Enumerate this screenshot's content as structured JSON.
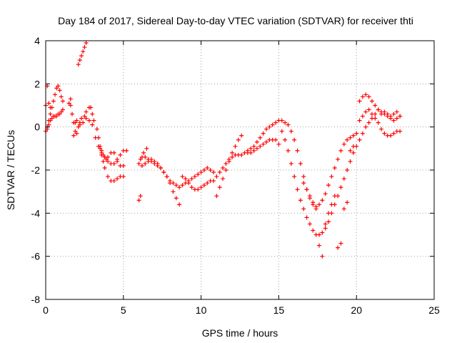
{
  "chart_data": {
    "type": "scatter",
    "title": "Day 184 of 2017, Sidereal Day-to-day VTEC variation (SDTVAR) for receiver thti",
    "xlabel": "GPS time / hours",
    "ylabel": "SDTVAR / TECUs",
    "xlim": [
      0,
      25
    ],
    "ylim": [
      -8,
      4
    ],
    "xticks": [
      0,
      5,
      10,
      15,
      20,
      25
    ],
    "yticks": [
      -8,
      -6,
      -4,
      -2,
      0,
      2,
      4
    ],
    "grid": true,
    "marker": "plus",
    "color": "#ff0000",
    "series": [
      {
        "points": [
          [
            0.0,
            -0.2
          ],
          [
            0.1,
            0.0
          ],
          [
            0.2,
            0.3
          ],
          [
            0.3,
            0.6
          ],
          [
            0.4,
            0.9
          ],
          [
            0.5,
            1.2
          ],
          [
            0.6,
            1.5
          ],
          [
            0.7,
            1.8
          ],
          [
            0.8,
            1.9
          ],
          [
            0.9,
            1.7
          ],
          [
            1.0,
            1.4
          ],
          [
            1.1,
            1.2
          ],
          [
            1.6,
            1.0
          ],
          [
            1.7,
            0.6
          ],
          [
            1.8,
            0.2
          ],
          [
            1.9,
            -0.2
          ],
          [
            2.0,
            -0.3
          ],
          [
            2.1,
            0.0
          ],
          [
            2.2,
            0.2
          ],
          [
            2.3,
            0.4
          ],
          [
            2.5,
            0.5
          ],
          [
            2.6,
            0.7
          ],
          [
            2.8,
            0.9
          ],
          [
            2.9,
            0.9
          ],
          [
            3.0,
            0.6
          ],
          [
            3.1,
            0.3
          ],
          [
            3.3,
            -0.1
          ],
          [
            3.4,
            -0.5
          ],
          [
            3.5,
            -0.9
          ],
          [
            3.6,
            -1.3
          ],
          [
            3.7,
            -1.6
          ],
          [
            3.8,
            -1.9
          ],
          [
            4.0,
            -2.3
          ],
          [
            4.2,
            -2.5
          ],
          [
            4.4,
            -2.5
          ],
          [
            4.6,
            -2.4
          ],
          [
            4.8,
            -2.3
          ],
          [
            5.0,
            -2.3
          ],
          [
            6.0,
            -1.7
          ],
          [
            6.1,
            -1.5
          ],
          [
            6.2,
            -1.4
          ],
          [
            6.4,
            -1.4
          ],
          [
            6.6,
            -1.5
          ],
          [
            6.8,
            -1.6
          ],
          [
            7.0,
            -1.7
          ],
          [
            7.2,
            -1.8
          ],
          [
            7.4,
            -1.9
          ],
          [
            7.6,
            -2.1
          ],
          [
            7.8,
            -2.3
          ],
          [
            8.0,
            -2.6
          ],
          [
            8.2,
            -3.0
          ],
          [
            8.4,
            -3.3
          ],
          [
            8.6,
            -3.6
          ],
          [
            8.8,
            -2.3
          ],
          [
            9.0,
            -2.4
          ],
          [
            9.2,
            -2.6
          ],
          [
            9.4,
            -2.8
          ],
          [
            9.6,
            -2.9
          ],
          [
            9.8,
            -2.9
          ],
          [
            10.0,
            -2.8
          ],
          [
            10.2,
            -2.7
          ],
          [
            10.4,
            -2.6
          ],
          [
            10.6,
            -2.5
          ],
          [
            10.8,
            -2.5
          ],
          [
            11.0,
            -2.3
          ],
          [
            11.2,
            -2.1
          ],
          [
            11.4,
            -1.9
          ],
          [
            11.6,
            -1.7
          ],
          [
            11.8,
            -1.5
          ],
          [
            12.0,
            -1.4
          ],
          [
            12.2,
            -1.3
          ],
          [
            12.4,
            -1.3
          ],
          [
            12.6,
            -1.3
          ],
          [
            12.8,
            -1.2
          ],
          [
            13.0,
            -1.2
          ],
          [
            13.2,
            -1.2
          ],
          [
            13.4,
            -1.1
          ],
          [
            13.6,
            -1.0
          ],
          [
            13.8,
            -0.9
          ],
          [
            14.0,
            -0.8
          ],
          [
            14.2,
            -0.7
          ],
          [
            14.4,
            -0.6
          ],
          [
            14.6,
            -0.6
          ],
          [
            14.8,
            -0.6
          ],
          [
            15.0,
            -0.8
          ],
          [
            15.2,
            -0.2
          ],
          [
            15.4,
            -0.6
          ],
          [
            15.6,
            -1.1
          ],
          [
            15.8,
            -1.7
          ],
          [
            16.0,
            -2.3
          ],
          [
            16.2,
            -2.9
          ],
          [
            16.4,
            -3.4
          ],
          [
            16.6,
            -3.8
          ],
          [
            16.8,
            -4.2
          ],
          [
            17.0,
            -4.5
          ],
          [
            17.2,
            -4.8
          ],
          [
            17.4,
            -5.0
          ],
          [
            17.6,
            -5.0
          ],
          [
            17.8,
            -4.9
          ],
          [
            18.0,
            -4.7
          ],
          [
            18.2,
            -4.4
          ],
          [
            18.4,
            -4.0
          ],
          [
            18.6,
            -3.6
          ],
          [
            18.8,
            -3.2
          ],
          [
            19.0,
            -2.8
          ],
          [
            19.2,
            -2.4
          ],
          [
            19.4,
            -2.0
          ],
          [
            19.6,
            -1.6
          ],
          [
            19.8,
            -1.2
          ],
          [
            20.0,
            -0.9
          ],
          [
            20.2,
            -0.6
          ],
          [
            20.4,
            -0.3
          ],
          [
            20.6,
            0.0
          ],
          [
            20.8,
            0.2
          ],
          [
            21.0,
            0.4
          ],
          [
            21.2,
            0.6
          ],
          [
            21.4,
            0.8
          ],
          [
            21.6,
            0.7
          ],
          [
            21.8,
            0.7
          ],
          [
            22.0,
            0.6
          ],
          [
            22.2,
            0.5
          ],
          [
            22.4,
            0.6
          ],
          [
            22.6,
            0.7
          ],
          [
            22.8,
            0.5
          ]
        ]
      },
      {
        "points": [
          [
            0.1,
            -0.1
          ],
          [
            0.2,
            0.1
          ],
          [
            0.3,
            0.3
          ],
          [
            0.4,
            0.4
          ],
          [
            0.5,
            0.5
          ],
          [
            0.6,
            0.5
          ],
          [
            0.7,
            0.5
          ],
          [
            0.8,
            0.6
          ],
          [
            0.9,
            0.6
          ],
          [
            1.0,
            0.7
          ],
          [
            1.1,
            0.8
          ],
          [
            2.0,
            0.3
          ],
          [
            2.2,
            0.1
          ],
          [
            2.4,
            0.2
          ],
          [
            2.6,
            0.4
          ],
          [
            2.8,
            0.3
          ],
          [
            3.0,
            0.1
          ],
          [
            3.2,
            -0.5
          ],
          [
            3.4,
            -0.9
          ],
          [
            3.6,
            -1.2
          ],
          [
            3.8,
            -1.4
          ],
          [
            4.0,
            -1.6
          ],
          [
            4.2,
            -1.7
          ],
          [
            4.4,
            -1.7
          ],
          [
            4.6,
            -1.6
          ],
          [
            4.8,
            -1.8
          ],
          [
            5.0,
            -1.8
          ],
          [
            6.2,
            -1.8
          ],
          [
            6.4,
            -1.7
          ],
          [
            6.6,
            -1.6
          ],
          [
            6.8,
            -1.5
          ],
          [
            7.0,
            -1.6
          ],
          [
            7.2,
            -1.7
          ],
          [
            7.4,
            -1.9
          ],
          [
            7.6,
            -2.1
          ],
          [
            7.8,
            -2.3
          ],
          [
            8.0,
            -2.5
          ],
          [
            8.2,
            -2.6
          ],
          [
            8.4,
            -2.7
          ],
          [
            8.6,
            -2.8
          ],
          [
            8.8,
            -2.7
          ],
          [
            9.0,
            -2.6
          ],
          [
            9.2,
            -2.5
          ],
          [
            9.4,
            -2.4
          ],
          [
            9.6,
            -2.3
          ],
          [
            9.8,
            -2.2
          ],
          [
            10.0,
            -2.1
          ],
          [
            10.2,
            -2.0
          ],
          [
            10.4,
            -1.9
          ],
          [
            10.6,
            -2.0
          ],
          [
            10.8,
            -2.1
          ],
          [
            11.0,
            -3.2
          ],
          [
            11.2,
            -2.8
          ],
          [
            11.4,
            -2.4
          ],
          [
            11.6,
            -2.0
          ],
          [
            11.8,
            -1.6
          ],
          [
            12.0,
            -1.2
          ],
          [
            12.2,
            -0.9
          ],
          [
            12.4,
            -0.6
          ],
          [
            12.6,
            -0.4
          ],
          [
            13.0,
            -1.1
          ],
          [
            13.2,
            -1.0
          ],
          [
            13.4,
            -0.9
          ],
          [
            13.6,
            -0.7
          ],
          [
            13.8,
            -0.5
          ],
          [
            14.0,
            -0.3
          ],
          [
            14.2,
            -0.1
          ],
          [
            14.4,
            0.0
          ],
          [
            14.6,
            0.1
          ],
          [
            14.8,
            0.2
          ],
          [
            15.0,
            0.3
          ],
          [
            15.2,
            0.3
          ],
          [
            15.4,
            0.2
          ],
          [
            15.6,
            0.1
          ],
          [
            15.8,
            -0.2
          ],
          [
            16.0,
            -0.6
          ],
          [
            16.2,
            -1.1
          ],
          [
            16.4,
            -1.7
          ],
          [
            16.6,
            -2.3
          ],
          [
            16.8,
            -2.9
          ],
          [
            17.0,
            -3.3
          ],
          [
            17.2,
            -3.6
          ],
          [
            17.4,
            -3.7
          ],
          [
            17.6,
            -3.6
          ],
          [
            17.8,
            -3.4
          ],
          [
            18.0,
            -3.1
          ],
          [
            18.2,
            -2.7
          ],
          [
            18.4,
            -2.3
          ],
          [
            18.6,
            -1.9
          ],
          [
            18.8,
            -1.5
          ],
          [
            19.0,
            -1.1
          ],
          [
            19.2,
            -0.8
          ],
          [
            19.4,
            -0.6
          ],
          [
            19.6,
            -0.5
          ],
          [
            19.8,
            -0.4
          ],
          [
            20.0,
            -0.3
          ],
          [
            20.2,
            0.3
          ],
          [
            20.4,
            0.5
          ],
          [
            20.6,
            0.7
          ],
          [
            20.8,
            0.8
          ],
          [
            21.0,
            0.6
          ],
          [
            21.2,
            0.4
          ],
          [
            21.4,
            0.2
          ],
          [
            21.6,
            -0.1
          ],
          [
            21.8,
            -0.3
          ],
          [
            22.0,
            -0.4
          ],
          [
            22.2,
            -0.4
          ],
          [
            22.4,
            -0.3
          ],
          [
            22.6,
            -0.2
          ],
          [
            22.8,
            -0.2
          ]
        ]
      },
      {
        "points": [
          [
            0.0,
            1.0
          ],
          [
            0.1,
            1.9
          ],
          [
            0.2,
            1.1
          ],
          [
            0.3,
            0.9
          ],
          [
            1.5,
            1.1
          ],
          [
            1.6,
            1.3
          ],
          [
            1.8,
            -0.4
          ],
          [
            1.9,
            0.2
          ],
          [
            2.1,
            2.9
          ],
          [
            2.2,
            3.1
          ],
          [
            2.3,
            3.3
          ],
          [
            2.4,
            3.5
          ],
          [
            2.5,
            3.7
          ],
          [
            2.6,
            3.9
          ],
          [
            3.5,
            -1.0
          ],
          [
            3.6,
            -1.1
          ],
          [
            3.7,
            -1.3
          ],
          [
            3.8,
            -1.4
          ],
          [
            3.9,
            -1.5
          ],
          [
            4.0,
            -1.4
          ],
          [
            4.2,
            -1.2
          ],
          [
            4.4,
            -1.2
          ],
          [
            4.6,
            -1.5
          ],
          [
            4.8,
            -1.3
          ],
          [
            5.0,
            -1.1
          ],
          [
            5.2,
            -1.1
          ],
          [
            6.0,
            -3.4
          ],
          [
            6.1,
            -3.2
          ],
          [
            6.3,
            -1.2
          ],
          [
            6.5,
            -1.0
          ],
          [
            16.6,
            -2.6
          ],
          [
            16.8,
            -2.9
          ],
          [
            17.0,
            -3.2
          ],
          [
            17.2,
            -3.5
          ],
          [
            17.4,
            -3.8
          ],
          [
            17.6,
            -5.5
          ],
          [
            17.8,
            -6.0
          ],
          [
            18.0,
            -4.5
          ],
          [
            18.2,
            -4.0
          ],
          [
            18.4,
            -3.6
          ],
          [
            18.6,
            -3.2
          ],
          [
            18.8,
            -5.6
          ],
          [
            19.0,
            -5.4
          ],
          [
            19.2,
            -3.8
          ],
          [
            19.4,
            -3.5
          ],
          [
            19.6,
            -1.1
          ],
          [
            19.8,
            -0.9
          ],
          [
            20.2,
            1.2
          ],
          [
            20.4,
            1.4
          ],
          [
            20.6,
            1.5
          ],
          [
            20.8,
            1.4
          ],
          [
            21.0,
            1.2
          ],
          [
            21.2,
            1.0
          ],
          [
            21.4,
            0.8
          ],
          [
            21.6,
            0.6
          ],
          [
            21.8,
            0.6
          ],
          [
            22.0,
            0.5
          ],
          [
            22.2,
            0.4
          ],
          [
            22.4,
            0.3
          ],
          [
            22.6,
            0.4
          ],
          [
            22.8,
            0.5
          ]
        ]
      }
    ]
  }
}
